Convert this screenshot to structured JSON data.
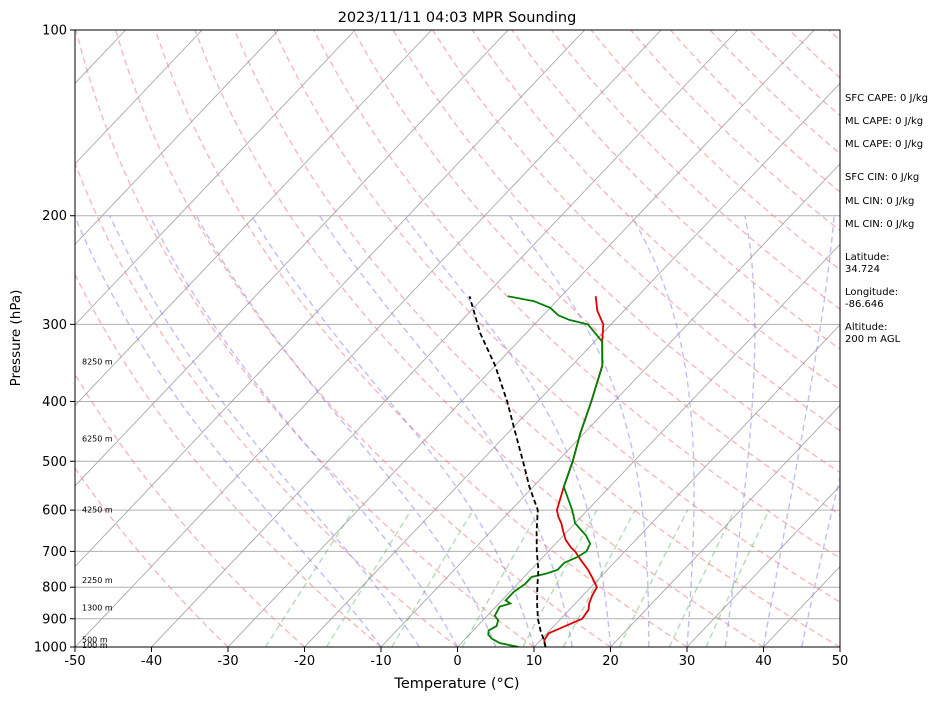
{
  "chart_data": {
    "type": "line",
    "title": "2023/11/11 04:03 MPR Sounding",
    "xlabel": "Temperature (°C)",
    "ylabel": "Pressure (hPa)",
    "xlim": [
      -50,
      50
    ],
    "ylim": [
      1000,
      100
    ],
    "y_scale": "log",
    "grid": true,
    "x_ticks": [
      -50,
      -40,
      -30,
      -20,
      -10,
      0,
      10,
      20,
      30,
      40,
      50
    ],
    "y_ticks": [
      1000,
      900,
      800,
      700,
      600,
      500,
      400,
      300,
      200,
      100
    ],
    "height_labels": [
      {
        "p": 995,
        "label": "100 m"
      },
      {
        "p": 975,
        "label": "500 m"
      },
      {
        "p": 865,
        "label": "1300 m"
      },
      {
        "p": 780,
        "label": "2250 m"
      },
      {
        "p": 600,
        "label": "4250 m"
      },
      {
        "p": 460,
        "label": "6250 m"
      },
      {
        "p": 345,
        "label": "8250 m"
      }
    ],
    "series": [
      {
        "role": "temperature",
        "color": "#e00000",
        "points": [
          [
            11.5,
            1000
          ],
          [
            10.5,
            975
          ],
          [
            10.2,
            950
          ],
          [
            11.5,
            925
          ],
          [
            12.8,
            900
          ],
          [
            12.5,
            870
          ],
          [
            11.8,
            850
          ],
          [
            11.2,
            825
          ],
          [
            10.8,
            800
          ],
          [
            9.2,
            775
          ],
          [
            7.5,
            750
          ],
          [
            5.5,
            725
          ],
          [
            3.5,
            700
          ],
          [
            2.5,
            690
          ],
          [
            0.8,
            670
          ],
          [
            -0.5,
            650
          ],
          [
            -1.8,
            630
          ],
          [
            -3.0,
            615
          ],
          [
            -4.0,
            600
          ],
          [
            -6.0,
            550
          ],
          [
            -8.0,
            500
          ],
          [
            -10.5,
            450
          ],
          [
            -13.0,
            400
          ],
          [
            -16.0,
            350
          ],
          [
            -19.0,
            320
          ],
          [
            -21.0,
            300
          ],
          [
            -23.5,
            285
          ],
          [
            -25.5,
            270
          ]
        ]
      },
      {
        "role": "dewpoint",
        "color": "#008000",
        "points": [
          [
            8.0,
            1000
          ],
          [
            5.0,
            985
          ],
          [
            3.5,
            970
          ],
          [
            2.5,
            955
          ],
          [
            2.0,
            940
          ],
          [
            2.5,
            925
          ],
          [
            2.0,
            905
          ],
          [
            1.0,
            890
          ],
          [
            0.5,
            860
          ],
          [
            1.5,
            850
          ],
          [
            0.5,
            840
          ],
          [
            0.5,
            815
          ],
          [
            1.0,
            790
          ],
          [
            1.0,
            770
          ],
          [
            2.5,
            760
          ],
          [
            3.5,
            750
          ],
          [
            3.5,
            730
          ],
          [
            4.5,
            715
          ],
          [
            5.0,
            700
          ],
          [
            4.5,
            680
          ],
          [
            3.0,
            660
          ],
          [
            1.5,
            645
          ],
          [
            0.0,
            630
          ],
          [
            -2.0,
            600
          ],
          [
            -6.0,
            550
          ],
          [
            -8.0,
            500
          ],
          [
            -10.5,
            450
          ],
          [
            -13.0,
            400
          ],
          [
            -16.0,
            350
          ],
          [
            -19.0,
            320
          ],
          [
            -23.0,
            300
          ],
          [
            -26.0,
            295
          ],
          [
            -28.0,
            290
          ],
          [
            -30.0,
            282
          ],
          [
            -33.0,
            275
          ],
          [
            -37.0,
            270
          ]
        ]
      },
      {
        "role": "parcel",
        "color": "#000000",
        "dash": true,
        "points": [
          [
            11.5,
            1000
          ],
          [
            10.0,
            965
          ],
          [
            9.0,
            945
          ],
          [
            7.0,
            900
          ],
          [
            5.0,
            850
          ],
          [
            3.0,
            800
          ],
          [
            1.0,
            750
          ],
          [
            -1.5,
            700
          ],
          [
            -4.0,
            650
          ],
          [
            -6.5,
            600
          ],
          [
            -10.5,
            550
          ],
          [
            -14.5,
            500
          ],
          [
            -19.0,
            450
          ],
          [
            -24.0,
            400
          ],
          [
            -30.0,
            350
          ],
          [
            -36.0,
            310
          ],
          [
            -42.0,
            270
          ]
        ]
      }
    ]
  },
  "stats": [
    "SFC CAPE: 0 J/kg",
    "ML CAPE: 0 J/kg",
    "ML CAPE: 0 J/kg",
    "SFC CIN: 0 J/kg",
    "ML CIN: 0 J/kg",
    "ML CIN: 0 J/kg",
    "Latitude:\n34.724",
    "Longitude:\n-86.646",
    "Altitude:\n200 m AGL"
  ]
}
